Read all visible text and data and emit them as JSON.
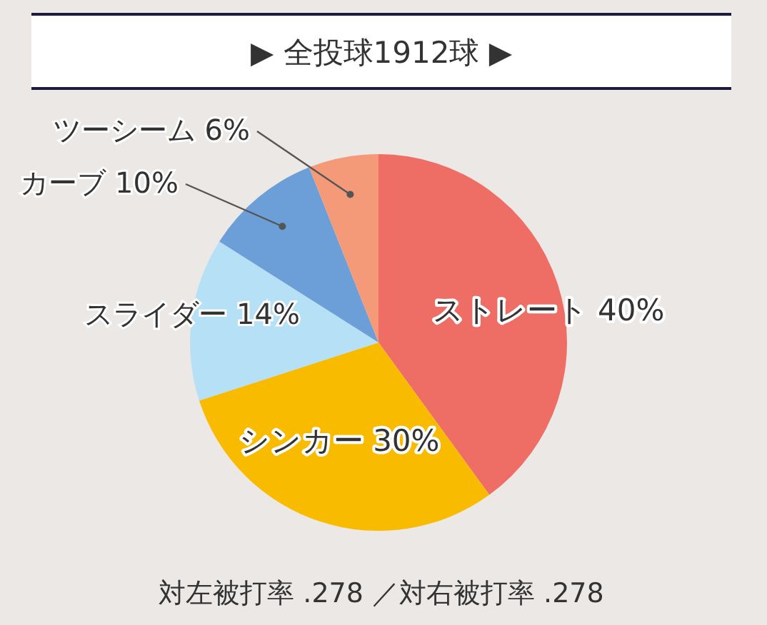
{
  "chart_data": {
    "type": "pie",
    "title": "▶ 全投球1912球 ▶",
    "categories": [
      "ストレート",
      "シンカー",
      "スライダー",
      "カーブ",
      "ツーシーム"
    ],
    "values": [
      40,
      30,
      14,
      10,
      6
    ],
    "colors": [
      "#ee6e66",
      "#f9bb00",
      "#b6e0f5",
      "#6c9fd8",
      "#f49a78"
    ],
    "value_labels": [
      "40%",
      "30%",
      "14%",
      "10%",
      "6%"
    ],
    "annotations": [
      "対左被打率 .278 ／対右被打率 .278"
    ]
  }
}
